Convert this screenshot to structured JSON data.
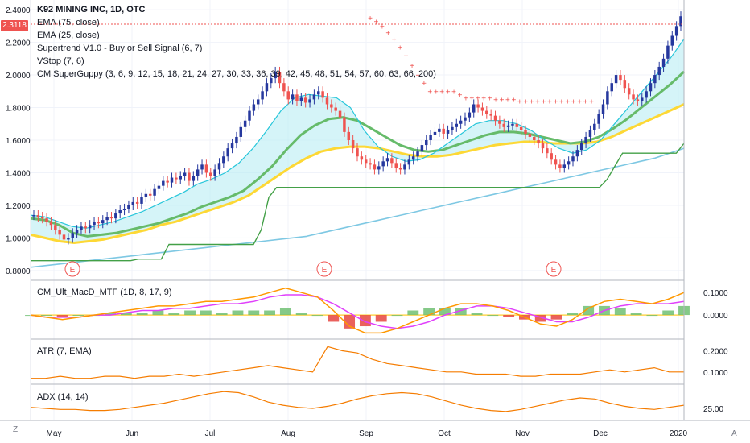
{
  "header": {
    "symbol_line": "K92 MINING INC, 1D, OTC",
    "indicators": [
      "EMA (75, close)",
      "EMA (25, close)",
      "Supertrend V1.0 - Buy or Sell Signal (6, 7)",
      "VStop (7, 6)",
      "CM SuperGuppy (3, 6, 9, 12, 15, 18, 21, 24, 27, 30, 33, 36, 39, 42, 45, 48, 51, 54, 57, 60, 63, 66, 200)"
    ],
    "last_price_tag": "2.3118"
  },
  "panes": {
    "macd_label": "CM_Ult_MacD_MTF (1D, 8, 17, 9)",
    "atr_label": "ATR (7, EMA)",
    "adx_label": "ADX (14, 14)"
  },
  "corner": {
    "left": "Z",
    "right": "A"
  },
  "colors": {
    "up": "#26389e",
    "down": "#ef5350",
    "ema75": "#7ec8e3",
    "guppy_fast": "#26c6da",
    "guppy_slow": "#66bb6a",
    "guppy_200": "#fdd835",
    "vstop": "#43a047",
    "supertrend_buy": "#43a047",
    "supertrend_sell": "#ef5350",
    "macd": "#ff9800",
    "signal": "#e040fb",
    "atr": "#f57c00",
    "adx": "#f57c00",
    "price_line": "#ef5350"
  },
  "chart_data": [
    {
      "type": "candlestick",
      "title": "K92 MINING INC, 1D, OTC",
      "x_ticks": [
        "May",
        "Jun",
        "Jul",
        "Aug",
        "Sep",
        "Oct",
        "Nov",
        "Dec",
        "2020"
      ],
      "y_ticks": [
        "2.4000",
        "2.2000",
        "2.0000",
        "1.8000",
        "1.6000",
        "1.4000",
        "1.2000",
        "1.0000",
        "0.8000"
      ],
      "ylim": [
        0.75,
        2.45
      ],
      "last_price": 2.3118,
      "close_series": [
        1.14,
        1.13,
        1.12,
        1.1,
        1.08,
        1.05,
        1.02,
        0.99,
        1.0,
        1.03,
        1.05,
        1.07,
        1.06,
        1.08,
        1.1,
        1.09,
        1.11,
        1.13,
        1.12,
        1.15,
        1.17,
        1.18,
        1.2,
        1.22,
        1.21,
        1.25,
        1.27,
        1.26,
        1.3,
        1.32,
        1.35,
        1.34,
        1.37,
        1.36,
        1.38,
        1.4,
        1.35,
        1.38,
        1.42,
        1.45,
        1.4,
        1.38,
        1.42,
        1.46,
        1.5,
        1.55,
        1.58,
        1.62,
        1.68,
        1.72,
        1.78,
        1.82,
        1.85,
        1.9,
        1.95,
        1.98,
        2.02,
        1.95,
        1.9,
        1.85,
        1.88,
        1.84,
        1.86,
        1.83,
        1.85,
        1.88,
        1.9,
        1.86,
        1.82,
        1.8,
        1.78,
        1.74,
        1.65,
        1.6,
        1.55,
        1.5,
        1.48,
        1.46,
        1.45,
        1.42,
        1.44,
        1.47,
        1.49,
        1.46,
        1.43,
        1.42,
        1.45,
        1.48,
        1.5,
        1.53,
        1.57,
        1.6,
        1.63,
        1.65,
        1.67,
        1.64,
        1.66,
        1.68,
        1.7,
        1.72,
        1.74,
        1.77,
        1.82,
        1.8,
        1.78,
        1.76,
        1.75,
        1.72,
        1.7,
        1.68,
        1.69,
        1.7,
        1.68,
        1.66,
        1.64,
        1.62,
        1.6,
        1.58,
        1.55,
        1.52,
        1.48,
        1.45,
        1.43,
        1.45,
        1.47,
        1.5,
        1.54,
        1.58,
        1.62,
        1.66,
        1.7,
        1.76,
        1.82,
        1.9,
        1.95,
        2.0,
        1.97,
        1.92,
        1.88,
        1.85,
        1.84,
        1.86,
        1.9,
        1.95,
        2.0,
        2.05,
        2.1,
        2.18,
        2.24,
        2.3,
        2.36
      ],
      "ema75": [
        0.82,
        0.83,
        0.84,
        0.85,
        0.86,
        0.87,
        0.88,
        0.89,
        0.9,
        0.91,
        0.92,
        0.93,
        0.94,
        0.95,
        0.96,
        0.97,
        0.98,
        0.99,
        1.0,
        1.01,
        1.03,
        1.05,
        1.07,
        1.09,
        1.11,
        1.13,
        1.15,
        1.17,
        1.19,
        1.21,
        1.23,
        1.25,
        1.27,
        1.29,
        1.31,
        1.33,
        1.35,
        1.37,
        1.39,
        1.41,
        1.43,
        1.45,
        1.47,
        1.49,
        1.52,
        1.55
      ],
      "guppy_fast": [
        1.14,
        1.13,
        1.1,
        1.07,
        1.06,
        1.08,
        1.1,
        1.13,
        1.16,
        1.2,
        1.24,
        1.28,
        1.33,
        1.36,
        1.4,
        1.46,
        1.55,
        1.66,
        1.78,
        1.86,
        1.88,
        1.87,
        1.86,
        1.8,
        1.66,
        1.56,
        1.5,
        1.47,
        1.48,
        1.52,
        1.58,
        1.64,
        1.7,
        1.72,
        1.72,
        1.7,
        1.66,
        1.6,
        1.55,
        1.52,
        1.54,
        1.6,
        1.7,
        1.8,
        1.9,
        2.0,
        2.1,
        2.22
      ],
      "guppy_slow": [
        1.12,
        1.11,
        1.08,
        1.03,
        1.01,
        1.02,
        1.03,
        1.05,
        1.07,
        1.09,
        1.12,
        1.15,
        1.19,
        1.22,
        1.25,
        1.29,
        1.36,
        1.44,
        1.54,
        1.63,
        1.69,
        1.73,
        1.74,
        1.72,
        1.67,
        1.62,
        1.57,
        1.54,
        1.53,
        1.54,
        1.57,
        1.6,
        1.63,
        1.65,
        1.65,
        1.64,
        1.62,
        1.6,
        1.58,
        1.59,
        1.62,
        1.67,
        1.73,
        1.8,
        1.87,
        1.94,
        2.02
      ],
      "guppy_200": [
        1.02,
        1.0,
        0.98,
        0.97,
        0.98,
        0.99,
        1.01,
        1.03,
        1.05,
        1.08,
        1.1,
        1.13,
        1.16,
        1.19,
        1.22,
        1.26,
        1.32,
        1.38,
        1.44,
        1.49,
        1.53,
        1.55,
        1.56,
        1.56,
        1.55,
        1.53,
        1.51,
        1.5,
        1.5,
        1.51,
        1.53,
        1.55,
        1.57,
        1.58,
        1.59,
        1.59,
        1.58,
        1.58,
        1.58,
        1.59,
        1.62,
        1.66,
        1.7,
        1.74,
        1.78,
        1.82
      ],
      "vstop": [
        0.86,
        0.86,
        0.86,
        0.86,
        0.86,
        0.86,
        0.86,
        0.86,
        0.86,
        0.86,
        0.86,
        0.86,
        0.86,
        0.86,
        0.87,
        0.87,
        0.87,
        0.87,
        0.96,
        0.96,
        0.96,
        0.96,
        0.96,
        0.96,
        0.96,
        0.96,
        0.96,
        0.96,
        0.96,
        0.96,
        1.05,
        1.25,
        1.31,
        1.31,
        1.31,
        1.31,
        1.31,
        1.31,
        1.31,
        1.31,
        1.31,
        1.31,
        1.31,
        1.31,
        1.31,
        1.31,
        1.31,
        1.31,
        1.31,
        1.31,
        1.31,
        1.31,
        1.31,
        1.31,
        1.31,
        1.31,
        1.31,
        1.31,
        1.31,
        1.31,
        1.31,
        1.31,
        1.31,
        1.31,
        1.31,
        1.31,
        1.31,
        1.31,
        1.31,
        1.31,
        1.31,
        1.31,
        1.31,
        1.31,
        1.31,
        1.36,
        1.44,
        1.52,
        1.52,
        1.52,
        1.52,
        1.52,
        1.52,
        1.52,
        1.52,
        1.58
      ],
      "supertrend_sell": [
        2.35,
        2.33,
        2.3,
        2.26,
        2.22,
        2.17,
        2.12,
        2.06,
        2.0,
        1.95,
        1.9,
        1.9,
        1.9,
        1.9,
        1.9,
        1.88,
        1.86,
        1.86,
        1.86,
        1.86,
        1.86,
        1.85,
        1.85,
        1.85,
        1.85,
        1.84,
        1.84,
        1.84,
        1.84,
        1.84,
        1.84,
        1.84,
        1.84,
        1.84,
        1.84,
        1.84,
        1.84,
        1.84
      ]
    },
    {
      "type": "line",
      "title": "CM_Ult_MacD_MTF (1D, 8, 17, 9)",
      "y_ticks": [
        "0.1000",
        "0.0000"
      ],
      "ylim": [
        -0.1,
        0.14
      ],
      "macd": [
        0.0,
        -0.01,
        -0.02,
        -0.01,
        0.0,
        0.01,
        0.02,
        0.03,
        0.04,
        0.04,
        0.05,
        0.06,
        0.06,
        0.07,
        0.08,
        0.1,
        0.12,
        0.1,
        0.08,
        0.02,
        -0.05,
        -0.08,
        -0.08,
        -0.06,
        -0.03,
        0.0,
        0.03,
        0.05,
        0.05,
        0.04,
        0.02,
        -0.01,
        -0.04,
        -0.05,
        -0.02,
        0.03,
        0.06,
        0.07,
        0.06,
        0.05,
        0.07,
        0.1
      ],
      "signal": [
        0.0,
        -0.01,
        -0.01,
        -0.01,
        0.0,
        0.0,
        0.01,
        0.02,
        0.02,
        0.03,
        0.03,
        0.04,
        0.05,
        0.05,
        0.06,
        0.08,
        0.09,
        0.09,
        0.08,
        0.05,
        0.01,
        -0.03,
        -0.05,
        -0.06,
        -0.05,
        -0.03,
        0.0,
        0.02,
        0.04,
        0.04,
        0.03,
        0.01,
        -0.01,
        -0.03,
        -0.03,
        -0.01,
        0.02,
        0.04,
        0.05,
        0.05,
        0.05,
        0.06
      ],
      "histogram": [
        0.0,
        0.0,
        -0.01,
        0.0,
        0.0,
        0.01,
        0.01,
        0.01,
        0.02,
        0.01,
        0.02,
        0.02,
        0.01,
        0.02,
        0.02,
        0.02,
        0.03,
        0.01,
        0.0,
        -0.03,
        -0.06,
        -0.05,
        -0.03,
        0.0,
        0.02,
        0.03,
        0.03,
        0.03,
        0.01,
        0.0,
        -0.01,
        -0.02,
        -0.03,
        -0.02,
        0.01,
        0.04,
        0.04,
        0.03,
        0.01,
        0.0,
        0.02,
        0.04
      ]
    },
    {
      "type": "line",
      "title": "ATR (7, EMA)",
      "y_ticks": [
        "0.2000",
        "0.1000"
      ],
      "ylim": [
        0.05,
        0.24
      ],
      "values": [
        0.07,
        0.07,
        0.08,
        0.07,
        0.07,
        0.08,
        0.08,
        0.07,
        0.08,
        0.08,
        0.09,
        0.08,
        0.09,
        0.1,
        0.11,
        0.12,
        0.13,
        0.12,
        0.11,
        0.1,
        0.22,
        0.2,
        0.19,
        0.16,
        0.14,
        0.13,
        0.12,
        0.11,
        0.1,
        0.1,
        0.09,
        0.09,
        0.09,
        0.08,
        0.08,
        0.09,
        0.09,
        0.09,
        0.1,
        0.11,
        0.1,
        0.11,
        0.12,
        0.1,
        0.1
      ]
    },
    {
      "type": "line",
      "title": "ADX (14, 14)",
      "y_ticks": [
        "25.00"
      ],
      "ylim": [
        15,
        45
      ],
      "values": [
        26,
        25,
        24,
        24,
        23,
        23,
        24,
        26,
        28,
        30,
        33,
        36,
        39,
        41,
        40,
        36,
        31,
        28,
        26,
        25,
        27,
        30,
        34,
        37,
        39,
        40,
        39,
        36,
        32,
        28,
        25,
        23,
        22,
        24,
        27,
        30,
        33,
        35,
        34,
        30,
        27,
        25,
        24,
        26,
        28
      ]
    }
  ]
}
